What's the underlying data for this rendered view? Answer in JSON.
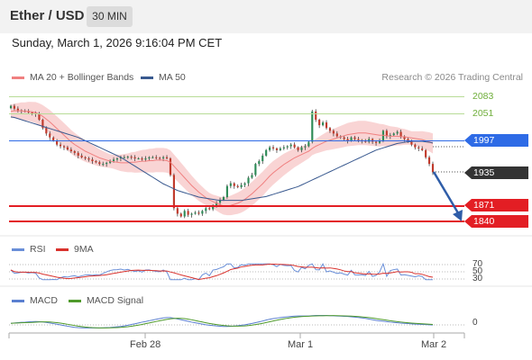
{
  "header": {
    "pair": "Ether / USD",
    "interval": "30 MIN"
  },
  "datetime": "Sunday, March 1, 2026 9:16:04 PM CET",
  "legend": {
    "bollinger": "MA 20 + Bollinger Bands",
    "ma50": "MA 50",
    "rsi": "RSI",
    "rsi_ma": "9MA",
    "macd": "MACD",
    "macd_signal": "MACD Signal"
  },
  "research": "Research © 2026 Trading Central",
  "levels": {
    "r2": "2083",
    "r1": "2051",
    "pivot": "1997",
    "last": "1935",
    "s1": "1871",
    "s2": "1840"
  },
  "rsi_levels": {
    "high": "70",
    "mid": "50",
    "low": "30"
  },
  "macd_level": "0",
  "x_axis": {
    "t1": "Feb 28",
    "t2": "Mar 1",
    "t3": "Mar 2"
  },
  "colors": {
    "resistance": "#9bd06e",
    "pivot": "#2e6be6",
    "support": "#e31e24",
    "last": "#333333",
    "forecast": "#2f5da8",
    "bollinger": "#f7c6c6",
    "ma50": "#39598f"
  },
  "chart_data": {
    "type": "candlestick",
    "ylim": [
      1820,
      2100
    ],
    "closes": [
      2055,
      2050,
      2047,
      2046,
      2045,
      2043,
      2042,
      2040,
      2030,
      2015,
      2005,
      1998,
      1992,
      1985,
      1982,
      1980,
      1976,
      1973,
      1970,
      1965,
      1962,
      1960,
      1958,
      1955,
      1953,
      1950,
      1950,
      1952,
      1955,
      1958,
      1960,
      1962,
      1962,
      1963,
      1962,
      1960,
      1960,
      1958,
      1960,
      1962,
      1962,
      1961,
      1960,
      1962,
      1960,
      1930,
      1870,
      1860,
      1855,
      1865,
      1858,
      1860,
      1862,
      1860,
      1865,
      1870,
      1868,
      1875,
      1880,
      1885,
      1890,
      1910,
      1915,
      1910,
      1908,
      1912,
      1915,
      1925,
      1930,
      1950,
      1955,
      1965,
      1975,
      1980,
      1978,
      1975,
      1978,
      1980,
      1982,
      1985,
      1980,
      1975,
      1980,
      1982,
      1990,
      2045,
      2030,
      2020,
      2025,
      2015,
      2010,
      2005,
      2000,
      1998,
      1995,
      1992,
      1998,
      1995,
      1993,
      1992,
      1990,
      1995,
      1990,
      1988,
      1992,
      2010,
      2000,
      2002,
      2005,
      2008,
      2000,
      1995,
      1990,
      1985,
      1980,
      1978,
      1975,
      1962,
      1950,
      1935
    ],
    "ma20": [
      2045,
      2046,
      2046,
      2046,
      2045,
      2045,
      2044,
      2043,
      2040,
      2036,
      2031,
      2026,
      2020,
      2014,
      2008,
      2002,
      1996,
      1990,
      1985,
      1981,
      1977,
      1973,
      1970,
      1967,
      1964,
      1961,
      1959,
      1957,
      1955,
      1954,
      1953,
      1952,
      1952,
      1952,
      1953,
      1953,
      1954,
      1955,
      1955,
      1956,
      1956,
      1957,
      1957,
      1957,
      1956,
      1953,
      1946,
      1939,
      1932,
      1925,
      1918,
      1911,
      1905,
      1899,
      1894,
      1889,
      1885,
      1882,
      1879,
      1876,
      1874,
      1874,
      1875,
      1877,
      1879,
      1882,
      1886,
      1891,
      1896,
      1902,
      1908,
      1914,
      1921,
      1928,
      1934,
      1939,
      1944,
      1949,
      1953,
      1957,
      1961,
      1964,
      1967,
      1970,
      1973,
      1978,
      1982,
      1985,
      1988,
      1991,
      1993,
      1995,
      1997,
      1999,
      2001,
      2003,
      2004,
      2005,
      2006,
      2006,
      2006,
      2005,
      2004,
      2003,
      2002,
      2002,
      2001,
      2000,
      2000,
      2000,
      1999,
      1999,
      1998,
      1997,
      1996,
      1995,
      1994,
      1992,
      1990,
      1987
    ],
    "ma50": [
      2035,
      2034,
      2032,
      2030,
      2028,
      2026,
      2024,
      2022,
      2020,
      2018,
      2016,
      2014,
      2012,
      2010,
      2008,
      2006,
      2004,
      2002,
      2000,
      1998,
      1995,
      1992,
      1989,
      1986,
      1983,
      1980,
      1977,
      1974,
      1971,
      1968,
      1965,
      1962,
      1958,
      1954,
      1950,
      1946,
      1942,
      1938,
      1934,
      1930,
      1926,
      1922,
      1918,
      1914,
      1911,
      1908,
      1905,
      1902,
      1900,
      1898,
      1896,
      1894,
      1892,
      1890,
      1889,
      1888,
      1887,
      1886,
      1885,
      1884,
      1884,
      1884,
      1884,
      1884,
      1884,
      1884,
      1885,
      1886,
      1887,
      1888,
      1889,
      1890,
      1891,
      1893,
      1895,
      1897,
      1899,
      1901,
      1903,
      1905,
      1907,
      1909,
      1912,
      1915,
      1918,
      1921,
      1924,
      1927,
      1930,
      1933,
      1936,
      1939,
      1942,
      1945,
      1948,
      1951,
      1954,
      1957,
      1960,
      1963,
      1966,
      1969,
      1972,
      1975,
      1977,
      1979,
      1981,
      1983,
      1985,
      1987,
      1988,
      1989,
      1990,
      1991,
      1991,
      1991,
      1991,
      1990,
      1989,
      1988
    ]
  }
}
